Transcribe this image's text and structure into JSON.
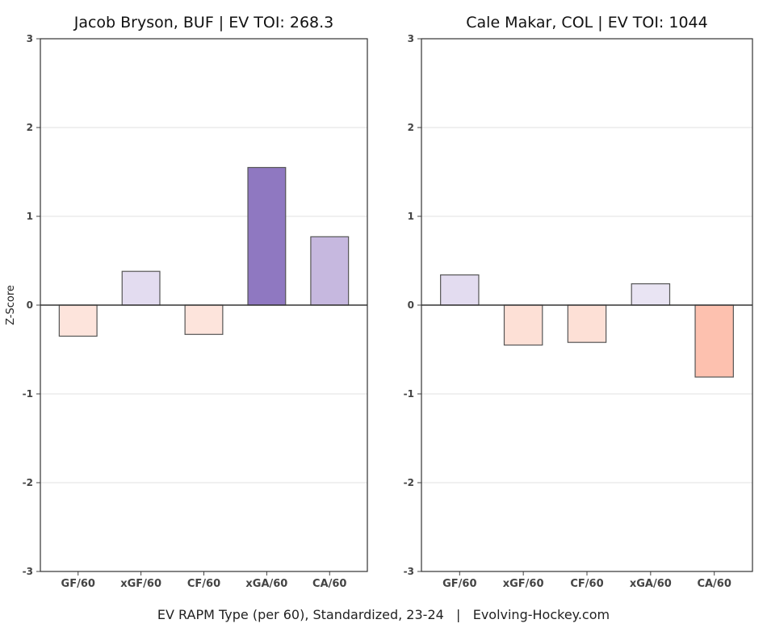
{
  "footer": "EV RAPM Type (per 60), Standardized, 23-24   |   Evolving-Hockey.com",
  "chart_data": [
    {
      "type": "bar",
      "title": "Jacob Bryson, BUF  |  EV TOI: 268.3",
      "ylabel": "Z-Score",
      "xlabel": "",
      "categories": [
        "GF/60",
        "xGF/60",
        "CF/60",
        "xGA/60",
        "CA/60"
      ],
      "values": [
        -0.35,
        0.38,
        -0.33,
        1.55,
        0.77
      ],
      "colors": [
        "#fde4dc",
        "#e3dcf0",
        "#fde4dc",
        "#8f78c1",
        "#c6b8df"
      ],
      "ylim": [
        -3,
        3
      ],
      "yticks": [
        -3,
        -2,
        -1,
        0,
        1,
        2,
        3
      ],
      "grid": true
    },
    {
      "type": "bar",
      "title": "Cale Makar, COL  |  EV TOI: 1044",
      "ylabel": "",
      "xlabel": "",
      "categories": [
        "GF/60",
        "xGF/60",
        "CF/60",
        "xGA/60",
        "CA/60"
      ],
      "values": [
        0.34,
        -0.45,
        -0.42,
        0.24,
        -0.81
      ],
      "colors": [
        "#e3dcf0",
        "#fde0d6",
        "#fde0d6",
        "#e9e4f3",
        "#fdc1af"
      ],
      "ylim": [
        -3,
        3
      ],
      "yticks": [
        -3,
        -2,
        -1,
        0,
        1,
        2,
        3
      ],
      "grid": true
    }
  ]
}
